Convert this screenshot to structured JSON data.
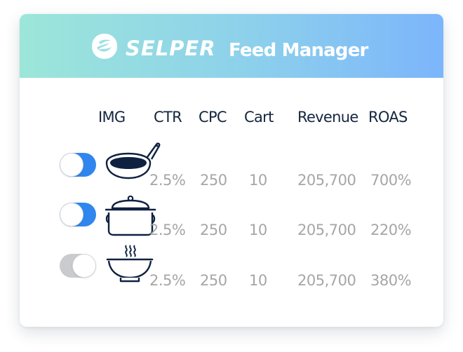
{
  "header": {
    "logo_text": "SELPER",
    "title": "Feed Manager"
  },
  "columns": {
    "img": "IMG",
    "ctr": "CTR",
    "cpc": "CPC",
    "cart": "Cart",
    "revenue": "Revenue",
    "roas": "ROAS"
  },
  "rows": [
    {
      "enabled": true,
      "icon": "frying-pan-icon",
      "ctr": "2.5%",
      "cpc": "250",
      "cart": "10",
      "revenue": "205,700",
      "roas": "700%"
    },
    {
      "enabled": true,
      "icon": "cooking-pot-icon",
      "ctr": "2.5%",
      "cpc": "250",
      "cart": "10",
      "revenue": "205,700",
      "roas": "220%"
    },
    {
      "enabled": false,
      "icon": "steaming-bowl-icon",
      "ctr": "2.5%",
      "cpc": "250",
      "cart": "10",
      "revenue": "205,700",
      "roas": "380%"
    }
  ],
  "colors": {
    "header_gradient_start": "#9ce6d9",
    "header_gradient_end": "#7cb5fb",
    "toggle_on": "#2f86ee",
    "toggle_off": "#c9cbce",
    "heading_text": "#14263f",
    "value_text": "#a6a6a6",
    "icon_stroke": "#0f2140"
  }
}
